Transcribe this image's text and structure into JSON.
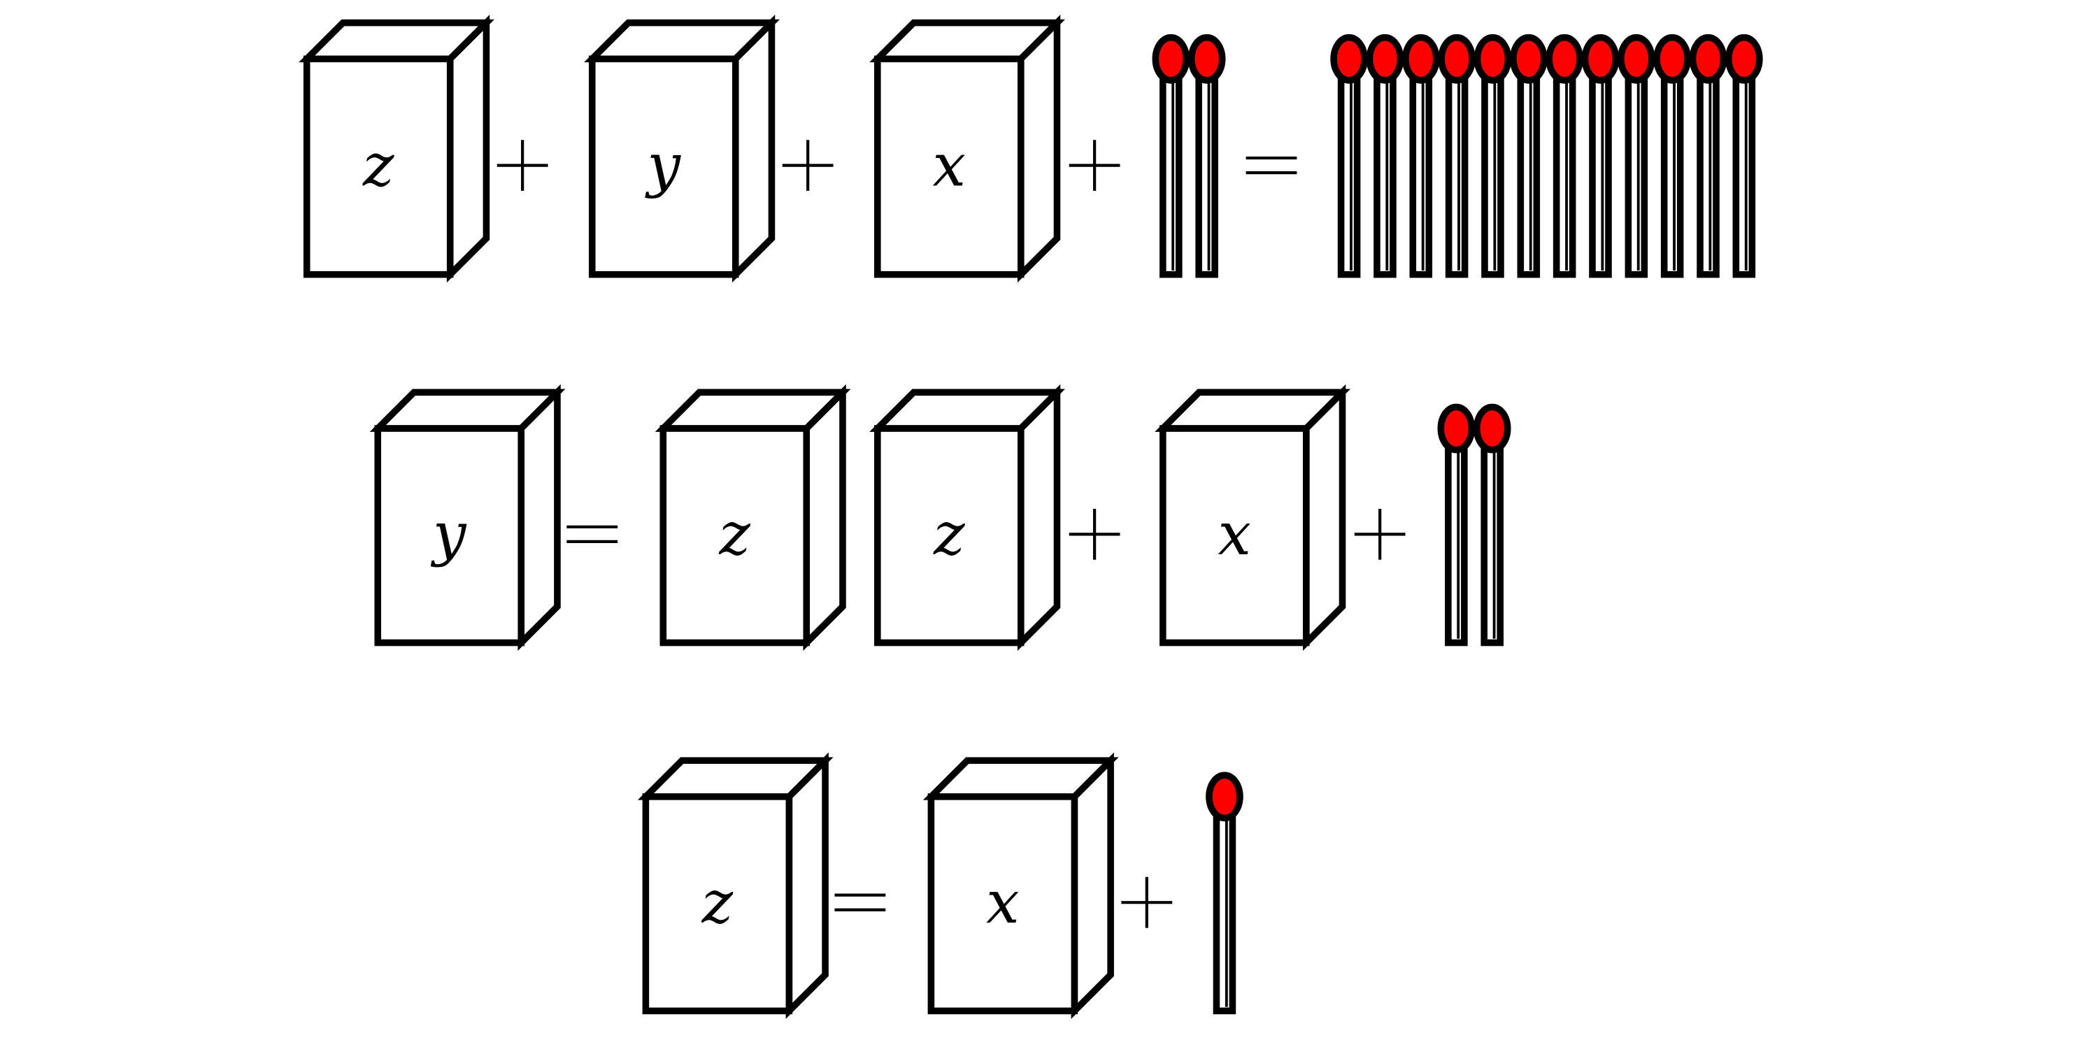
{
  "puzzle": {
    "colors": {
      "match_head": "#ff0000",
      "outline": "#000000",
      "background": "#ffffff"
    },
    "equations": [
      {
        "tokens": [
          {
            "type": "box",
            "label": "z"
          },
          {
            "type": "plus"
          },
          {
            "type": "box",
            "label": "y"
          },
          {
            "type": "plus"
          },
          {
            "type": "box",
            "label": "x"
          },
          {
            "type": "plus"
          },
          {
            "type": "matches",
            "count": 2
          },
          {
            "type": "equals"
          },
          {
            "type": "matches",
            "count": 12
          }
        ]
      },
      {
        "tokens": [
          {
            "type": "box",
            "label": "y"
          },
          {
            "type": "equals"
          },
          {
            "type": "box",
            "label": "z"
          },
          {
            "type": "box",
            "label": "z"
          },
          {
            "type": "plus"
          },
          {
            "type": "box",
            "label": "x"
          },
          {
            "type": "plus"
          },
          {
            "type": "matches",
            "count": 2
          }
        ]
      },
      {
        "tokens": [
          {
            "type": "box",
            "label": "z"
          },
          {
            "type": "equals"
          },
          {
            "type": "box",
            "label": "x"
          },
          {
            "type": "plus"
          },
          {
            "type": "matches",
            "count": 1
          }
        ]
      }
    ]
  }
}
